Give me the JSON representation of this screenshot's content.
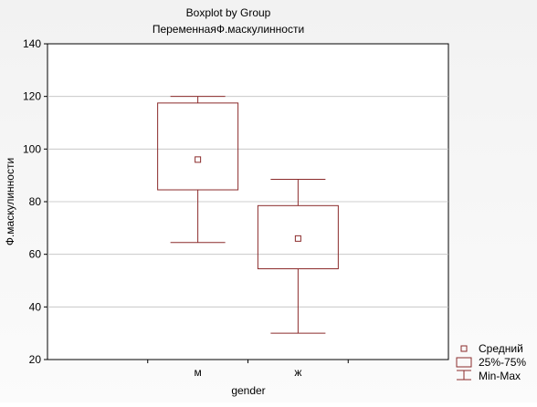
{
  "chart_data": {
    "type": "boxplot",
    "title": "Boxplot by Group",
    "subtitle": "ПеременнаяФ.маскулинности",
    "xlabel": "gender",
    "ylabel": "Ф.маскулинности",
    "ylim": [
      20,
      140
    ],
    "yticks": [
      20,
      40,
      60,
      80,
      100,
      120,
      140
    ],
    "grid": true,
    "categories": [
      "м",
      "ж"
    ],
    "groups": [
      {
        "category": "м",
        "mean": 96,
        "q1": 84.5,
        "q3": 117.5,
        "min": 64.5,
        "max": 120
      },
      {
        "category": "ж",
        "mean": 66,
        "q1": 54.5,
        "q3": 78.5,
        "min": 30,
        "max": 88.5
      }
    ],
    "legend": {
      "position": "bottom-right",
      "entries": [
        "Средний",
        "25%-75%",
        "Min-Max"
      ]
    },
    "colors": {
      "box": "#8b2b2b",
      "grid": "#bfbfbf",
      "axis": "#000000"
    }
  }
}
